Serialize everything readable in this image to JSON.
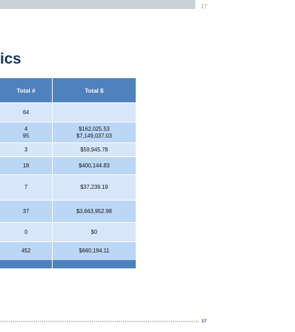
{
  "page_number_top": "17",
  "title": "ics",
  "table": {
    "header": [
      "Total #",
      "Total $"
    ],
    "rows": [
      [
        [
          "64"
        ],
        []
      ],
      [
        [
          "4",
          "95"
        ],
        [
          "$162,025.53",
          "$7,149,037.03"
        ]
      ],
      [
        [
          "3"
        ],
        [
          "$59,945.78"
        ]
      ],
      [
        [
          "18"
        ],
        [
          "$400,144.83"
        ]
      ],
      [
        [
          "7"
        ],
        [
          "$37,239.19"
        ]
      ],
      [
        [
          "37"
        ],
        [
          "$3,663,952.98"
        ]
      ],
      [
        [
          "0"
        ],
        [
          "$0"
        ]
      ],
      [
        [
          "452"
        ],
        [
          "$660,194.11"
        ]
      ]
    ]
  },
  "page_number_bottom": "17"
}
